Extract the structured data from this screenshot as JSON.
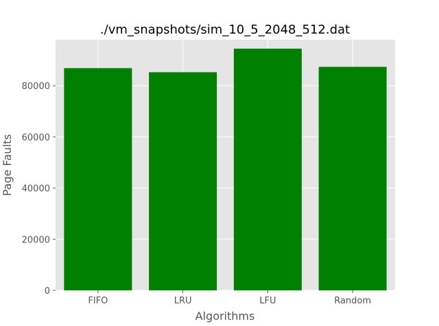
{
  "chart_data": {
    "type": "bar",
    "title": "./vm_snapshots/sim_10_5_2048_512.dat",
    "xlabel": "Algorithms",
    "ylabel": "Page Faults",
    "categories": [
      "FIFO",
      "LRU",
      "LFU",
      "Random"
    ],
    "values": [
      86900,
      85300,
      94500,
      87400
    ],
    "ylim": [
      0,
      98000
    ],
    "yticks": [
      0,
      20000,
      40000,
      60000,
      80000
    ],
    "grid": true,
    "colors": {
      "bar": "#008000",
      "plot_background": "#e5e5e5",
      "grid": "#ffffff",
      "tick": "#555555"
    }
  }
}
